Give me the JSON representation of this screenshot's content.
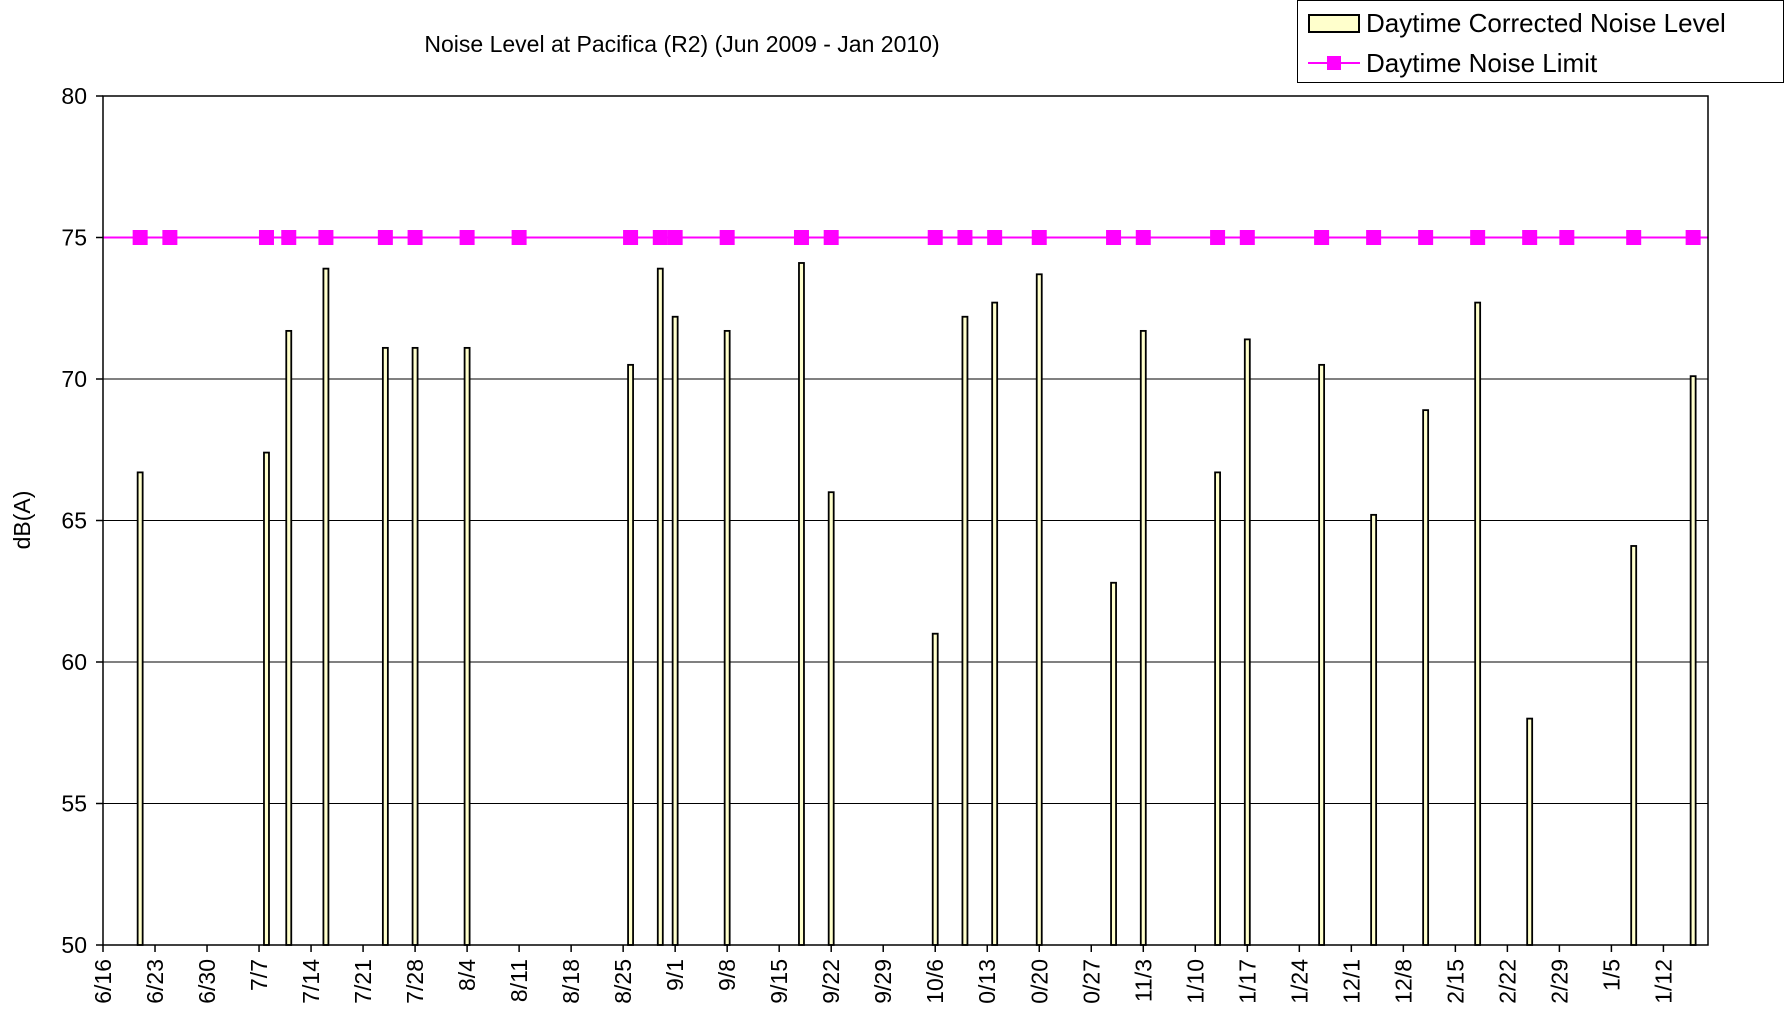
{
  "chart_data": {
    "type": "bar",
    "title": "Noise Level at Pacifica (R2) (Jun 2009 - Jan 2010)",
    "ylabel": "dB(A)",
    "xlabel": "",
    "ylim": [
      50,
      80
    ],
    "yticks": [
      50,
      55,
      60,
      65,
      70,
      75,
      80
    ],
    "grid": "horizontal",
    "legend_position": "top-right",
    "xlim": [
      "2009-06-16",
      "2010-01-18"
    ],
    "x_tick_labels": [
      "6/16",
      "6/23",
      "6/30",
      "7/7",
      "7/14",
      "7/21",
      "7/28",
      "8/4",
      "8/11",
      "8/18",
      "8/25",
      "9/1",
      "9/8",
      "9/15",
      "9/22",
      "9/29",
      "10/6",
      "0/13",
      "0/20",
      "0/27",
      "11/3",
      "1/10",
      "1/17",
      "1/24",
      "12/1",
      "12/8",
      "2/15",
      "2/22",
      "2/29",
      "1/5",
      "1/12"
    ],
    "x_tick_dates": [
      "2009-06-16",
      "2009-06-23",
      "2009-06-30",
      "2009-07-07",
      "2009-07-14",
      "2009-07-21",
      "2009-07-28",
      "2009-08-04",
      "2009-08-11",
      "2009-08-18",
      "2009-08-25",
      "2009-09-01",
      "2009-09-08",
      "2009-09-15",
      "2009-09-22",
      "2009-09-29",
      "2009-10-06",
      "2009-10-13",
      "2009-10-20",
      "2009-10-27",
      "2009-11-03",
      "2009-11-10",
      "2009-11-17",
      "2009-11-24",
      "2009-12-01",
      "2009-12-08",
      "2009-12-15",
      "2009-12-22",
      "2009-12-29",
      "2010-01-05",
      "2010-01-12"
    ],
    "series": [
      {
        "name": "Daytime Corrected Noise Level",
        "kind": "bar",
        "color": "#ffffcc",
        "stroke": "#000000",
        "points": [
          {
            "x": "2009-06-21",
            "y": 66.7
          },
          {
            "x": "2009-07-08",
            "y": 67.4
          },
          {
            "x": "2009-07-11",
            "y": 71.7
          },
          {
            "x": "2009-07-16",
            "y": 73.9
          },
          {
            "x": "2009-07-24",
            "y": 71.1
          },
          {
            "x": "2009-07-28",
            "y": 71.1
          },
          {
            "x": "2009-08-04",
            "y": 71.1
          },
          {
            "x": "2009-08-26",
            "y": 70.5
          },
          {
            "x": "2009-08-30",
            "y": 73.9
          },
          {
            "x": "2009-09-01",
            "y": 72.2
          },
          {
            "x": "2009-09-08",
            "y": 71.7
          },
          {
            "x": "2009-09-18",
            "y": 74.1
          },
          {
            "x": "2009-09-22",
            "y": 66.0
          },
          {
            "x": "2009-10-06",
            "y": 61.0
          },
          {
            "x": "2009-10-10",
            "y": 72.2
          },
          {
            "x": "2009-10-14",
            "y": 72.7
          },
          {
            "x": "2009-10-20",
            "y": 73.7
          },
          {
            "x": "2009-10-30",
            "y": 62.8
          },
          {
            "x": "2009-11-03",
            "y": 71.7
          },
          {
            "x": "2009-11-13",
            "y": 66.7
          },
          {
            "x": "2009-11-17",
            "y": 71.4
          },
          {
            "x": "2009-11-27",
            "y": 70.5
          },
          {
            "x": "2009-12-04",
            "y": 65.2
          },
          {
            "x": "2009-12-11",
            "y": 68.9
          },
          {
            "x": "2009-12-18",
            "y": 72.7
          },
          {
            "x": "2009-12-25",
            "y": 58.0
          },
          {
            "x": "2010-01-08",
            "y": 64.1
          },
          {
            "x": "2010-01-16",
            "y": 70.1
          }
        ]
      },
      {
        "name": "Daytime Noise Limit",
        "kind": "line",
        "color": "#ff00ff",
        "marker": "square",
        "points": [
          {
            "x": "2009-06-21",
            "y": 75
          },
          {
            "x": "2009-06-25",
            "y": 75
          },
          {
            "x": "2009-07-08",
            "y": 75
          },
          {
            "x": "2009-07-11",
            "y": 75
          },
          {
            "x": "2009-07-16",
            "y": 75
          },
          {
            "x": "2009-07-24",
            "y": 75
          },
          {
            "x": "2009-07-28",
            "y": 75
          },
          {
            "x": "2009-08-04",
            "y": 75
          },
          {
            "x": "2009-08-11",
            "y": 75
          },
          {
            "x": "2009-08-26",
            "y": 75
          },
          {
            "x": "2009-08-30",
            "y": 75
          },
          {
            "x": "2009-09-01",
            "y": 75
          },
          {
            "x": "2009-09-08",
            "y": 75
          },
          {
            "x": "2009-09-18",
            "y": 75
          },
          {
            "x": "2009-09-22",
            "y": 75
          },
          {
            "x": "2009-10-06",
            "y": 75
          },
          {
            "x": "2009-10-10",
            "y": 75
          },
          {
            "x": "2009-10-14",
            "y": 75
          },
          {
            "x": "2009-10-20",
            "y": 75
          },
          {
            "x": "2009-10-30",
            "y": 75
          },
          {
            "x": "2009-11-03",
            "y": 75
          },
          {
            "x": "2009-11-13",
            "y": 75
          },
          {
            "x": "2009-11-17",
            "y": 75
          },
          {
            "x": "2009-11-27",
            "y": 75
          },
          {
            "x": "2009-12-04",
            "y": 75
          },
          {
            "x": "2009-12-11",
            "y": 75
          },
          {
            "x": "2009-12-18",
            "y": 75
          },
          {
            "x": "2009-12-25",
            "y": 75
          },
          {
            "x": "2009-12-30",
            "y": 75
          },
          {
            "x": "2010-01-08",
            "y": 75
          },
          {
            "x": "2010-01-16",
            "y": 75
          }
        ]
      }
    ]
  }
}
